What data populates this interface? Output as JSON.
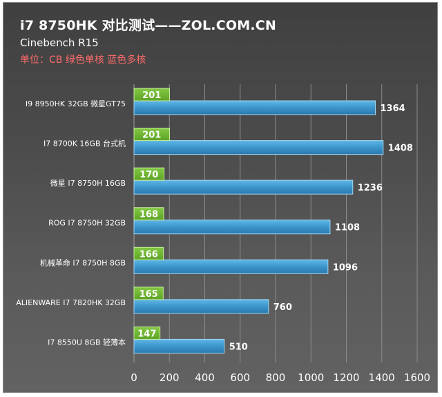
{
  "header": {
    "title": "i7 8750HK 对比测试——ZOL.COM.CN",
    "subtitle": "Cinebench R15",
    "unit_note": "单位：CB 绿色单核 蓝色多核"
  },
  "colors": {
    "single_core": "#6fb52f",
    "multi_core": "#3b93c8",
    "grid": "#8c8c8c"
  },
  "chart_data": {
    "type": "bar",
    "orientation": "horizontal",
    "title": "i7 8750HK 对比测试——ZOL.COM.CN",
    "subtitle": "Cinebench R15",
    "categories": [
      "I9 8950HK 32GB 微星GT75",
      "I7 8700K 16GB 台式机",
      "微星 I7 8750H 16GB",
      "ROG I7 8750H 32GB",
      "机械革命 I7 8750H 8GB",
      "ALIENWARE I7 7820HK 32GB",
      "I7 8550U 8GB 轻薄本"
    ],
    "series": [
      {
        "values": [
          201,
          201,
          170,
          168,
          166,
          165,
          147
        ]
      },
      {
        "values": [
          1364,
          1408,
          1236,
          1108,
          1096,
          760,
          510
        ]
      }
    ],
    "xlim": [
      0,
      1600
    ],
    "xticks": [
      0,
      200,
      400,
      600,
      800,
      1000,
      1200,
      1400,
      1600
    ],
    "grid": "vertical",
    "data_labels": true
  }
}
